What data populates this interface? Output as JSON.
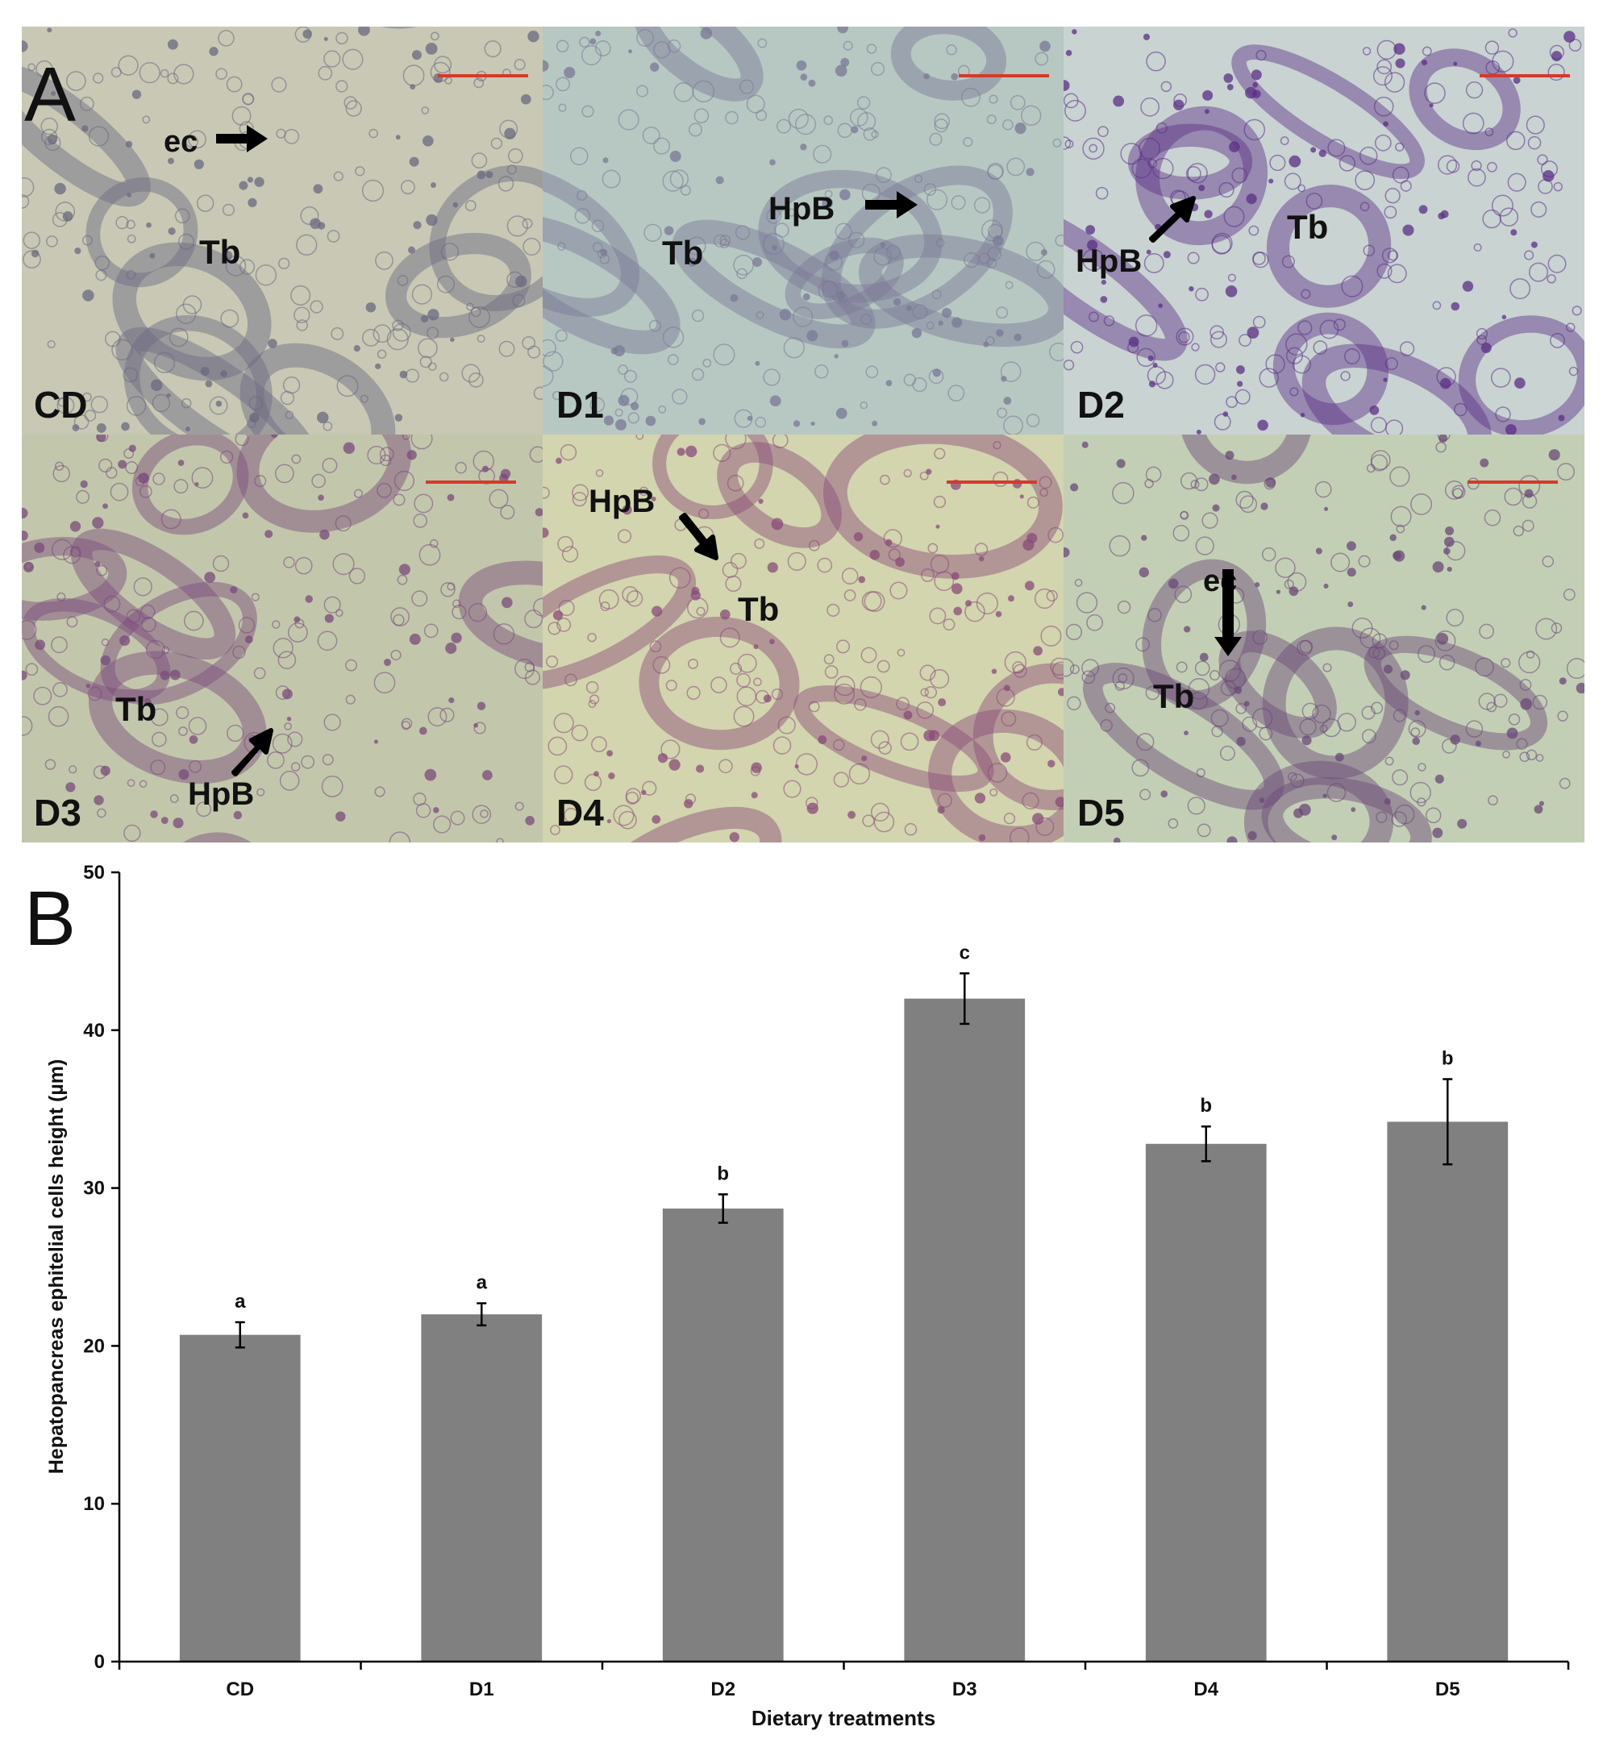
{
  "panels": {
    "a_label": "A",
    "b_label": "B"
  },
  "micrographs": [
    {
      "id": "CD",
      "label": "CD",
      "base": "#c8c8b4",
      "stain": "#6a6880",
      "annotations": [
        {
          "text": "ec",
          "arrow": "right"
        },
        {
          "text": "Tb"
        }
      ]
    },
    {
      "id": "D1",
      "label": "D1",
      "base": "#b7c8c2",
      "stain": "#7a7896",
      "annotations": [
        {
          "text": "Tb"
        },
        {
          "text": "HpB",
          "arrow": "right"
        }
      ]
    },
    {
      "id": "D2",
      "label": "D2",
      "base": "#c9d3d2",
      "stain": "#5a2f86",
      "annotations": [
        {
          "text": "HpB",
          "arrow": "up-right"
        },
        {
          "text": "Tb"
        }
      ]
    },
    {
      "id": "D3",
      "label": "D3",
      "base": "#c2c7ac",
      "stain": "#7a4a7a",
      "annotations": [
        {
          "text": "Tb"
        },
        {
          "text": "HpB",
          "arrow": "up-right"
        }
      ]
    },
    {
      "id": "D4",
      "label": "D4",
      "base": "#d2d5ae",
      "stain": "#8a4a78",
      "annotations": [
        {
          "text": "HpB",
          "arrow": "down-right"
        },
        {
          "text": "Tb"
        }
      ]
    },
    {
      "id": "D5",
      "label": "D5",
      "base": "#c3cfb5",
      "stain": "#6a4878",
      "annotations": [
        {
          "text": "ec",
          "arrow": "down"
        },
        {
          "text": "Tb"
        }
      ]
    }
  ],
  "scale_bar_color": "#d43a2a",
  "chart_data": {
    "type": "bar",
    "categories": [
      "CD",
      "D1",
      "D2",
      "D3",
      "D4",
      "D5"
    ],
    "values": [
      20.7,
      22.0,
      28.7,
      42.0,
      32.8,
      34.2
    ],
    "errors": [
      0.8,
      0.7,
      0.9,
      1.6,
      1.1,
      2.7
    ],
    "significance": [
      "a",
      "a",
      "b",
      "c",
      "b",
      "b"
    ],
    "xlabel": "Dietary treatments",
    "ylabel": "Hepatopancreas ephitelial cells height (µm)",
    "ylim": [
      0,
      50
    ],
    "yticks": [
      0,
      10,
      20,
      30,
      40,
      50
    ],
    "bar_color": "#808080",
    "grid": false,
    "legend": "none"
  }
}
